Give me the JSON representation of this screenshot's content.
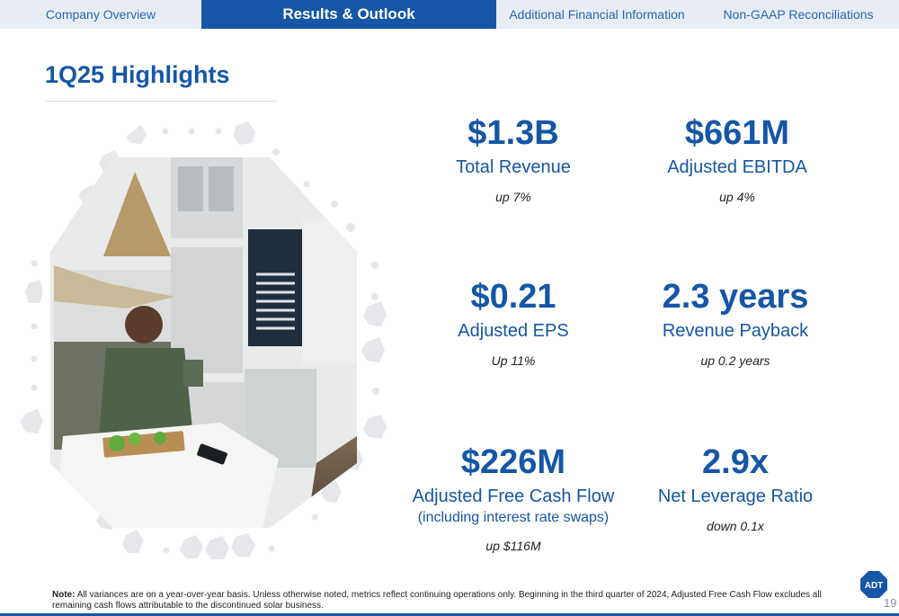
{
  "nav": {
    "tabs": [
      {
        "label": "Company Overview",
        "active": false
      },
      {
        "label": "Results & Outlook",
        "active": true
      },
      {
        "label": "Additional Financial Information",
        "active": false
      },
      {
        "label": "Non-GAAP Reconciliations",
        "active": false
      }
    ]
  },
  "page": {
    "title": "1Q25 Highlights",
    "page_number": "19"
  },
  "metrics": [
    {
      "value": "$1.3B",
      "label": "Total Revenue",
      "sublabel": "",
      "change": "up 7%"
    },
    {
      "value": "$661M",
      "label": "Adjusted EBITDA",
      "sublabel": "",
      "change": "up 4%"
    },
    {
      "value": "$0.21",
      "label": "Adjusted EPS",
      "sublabel": "",
      "change": "Up 11%"
    },
    {
      "value": "2.3 years",
      "label": "Revenue Payback",
      "sublabel": "",
      "change": "up 0.2 years"
    },
    {
      "value": "$226M",
      "label": "Adjusted Free Cash Flow",
      "sublabel": "(including interest rate swaps)",
      "change": "up $116M"
    },
    {
      "value": "2.9x",
      "label": "Net Leverage Ratio",
      "sublabel": "",
      "change": "down 0.1x"
    }
  ],
  "footer": {
    "note_label": "Note:",
    "note_text": " All variances are on a year-over-year basis. Unless otherwise noted, metrics reflect continuing operations only. Beginning in the third quarter of 2024, Adjusted Free Cash Flow excludes all remaining cash flows attributable to the discontinued solar business."
  },
  "logo": {
    "text": "ADT",
    "icon": "adt-octagon-logo"
  },
  "colors": {
    "brand_blue": "#1556a6",
    "nav_bg": "#e8edf5",
    "dots": "#e5e7ea"
  }
}
